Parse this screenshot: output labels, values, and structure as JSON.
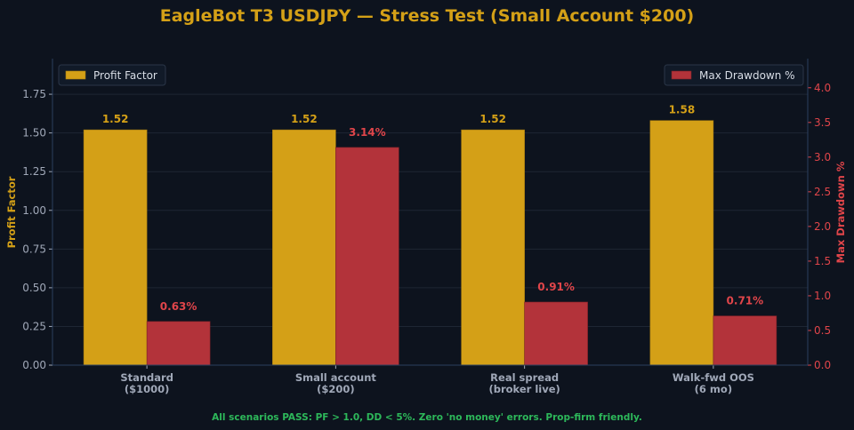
{
  "chart_data": {
    "type": "bar",
    "title": "EagleBot T3 USDJPY — Stress Test (Small Account $200)",
    "categories": [
      [
        "Standard",
        "($1000)"
      ],
      [
        "Small account",
        "($200)"
      ],
      [
        "Real spread",
        "(broker live)"
      ],
      [
        "Walk-fwd OOS",
        "(6 mo)"
      ]
    ],
    "series": [
      {
        "name": "Profit Factor",
        "axis": "left",
        "values": [
          1.52,
          1.52,
          1.52,
          1.58
        ],
        "labels": [
          "1.52",
          "1.52",
          "1.52",
          "1.58"
        ],
        "color": "#d4a017"
      },
      {
        "name": "Max Drawdown %",
        "axis": "right",
        "values": [
          0.63,
          3.14,
          0.91,
          0.71
        ],
        "labels": [
          "0.63%",
          "3.14%",
          "0.91%",
          "0.71%"
        ],
        "color": "#b3333a"
      }
    ],
    "ylabel": "Profit Factor",
    "y2label": "Max Drawdown %",
    "ylim": [
      0,
      1.98
    ],
    "y2lim": [
      0,
      4.42
    ],
    "yticks": [
      "0.00",
      "0.25",
      "0.50",
      "0.75",
      "1.00",
      "1.25",
      "1.50",
      "1.75"
    ],
    "y2ticks": [
      "0.0",
      "0.5",
      "1.0",
      "1.5",
      "2.0",
      "2.5",
      "3.0",
      "3.5",
      "4.0"
    ],
    "grid": true,
    "legend_left": "top-left",
    "legend_right": "top-right",
    "footer": "All scenarios PASS: PF > 1.0, DD < 5%. Zero 'no money' errors. Prop-firm friendly."
  },
  "colors": {
    "background": "#0d131e",
    "title": "#d4a017",
    "tick": "#a0a8b8",
    "category": "#a0a8b8",
    "grid": "#1e2633",
    "axis": "#2a3f5f",
    "right_axis": "#e0454a",
    "footer": "#2db85a"
  }
}
